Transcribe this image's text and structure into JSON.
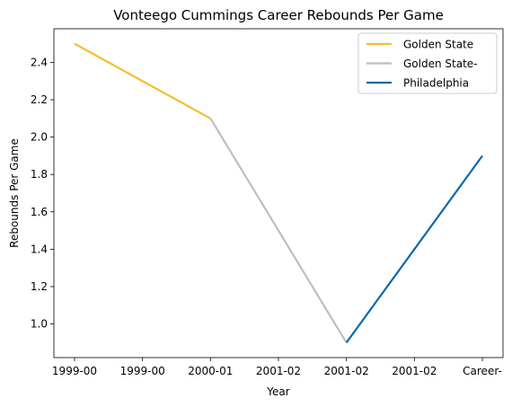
{
  "chart_data": {
    "type": "line",
    "title": "Vonteego Cummings Career Rebounds Per Game",
    "xlabel": "Year",
    "ylabel": "Rebounds Per Game",
    "categories": [
      "1999-00",
      "1999-00",
      "2000-01",
      "2001-02",
      "2001-02",
      "2001-02",
      "Career-"
    ],
    "ylim": [
      0.82,
      2.58
    ],
    "yticks": [
      1.0,
      1.2,
      1.4,
      1.6,
      1.8,
      2.0,
      2.2,
      2.4
    ],
    "ytick_labels": [
      "1.0",
      "1.2",
      "1.4",
      "1.6",
      "1.8",
      "2.0",
      "2.2",
      "2.4"
    ],
    "grid": false,
    "legend_position": "top-right",
    "series": [
      {
        "name": "Golden State",
        "color": "#f9bc2f",
        "points": [
          [
            0,
            2.5
          ],
          [
            2,
            2.1
          ]
        ]
      },
      {
        "name": "Golden State-",
        "color": "#bebebe",
        "points": [
          [
            2,
            2.1
          ],
          [
            4,
            0.9
          ]
        ]
      },
      {
        "name": "Philadelphia",
        "color": "#0868ac",
        "points": [
          [
            4,
            0.9
          ],
          [
            6,
            1.9
          ]
        ]
      }
    ]
  }
}
